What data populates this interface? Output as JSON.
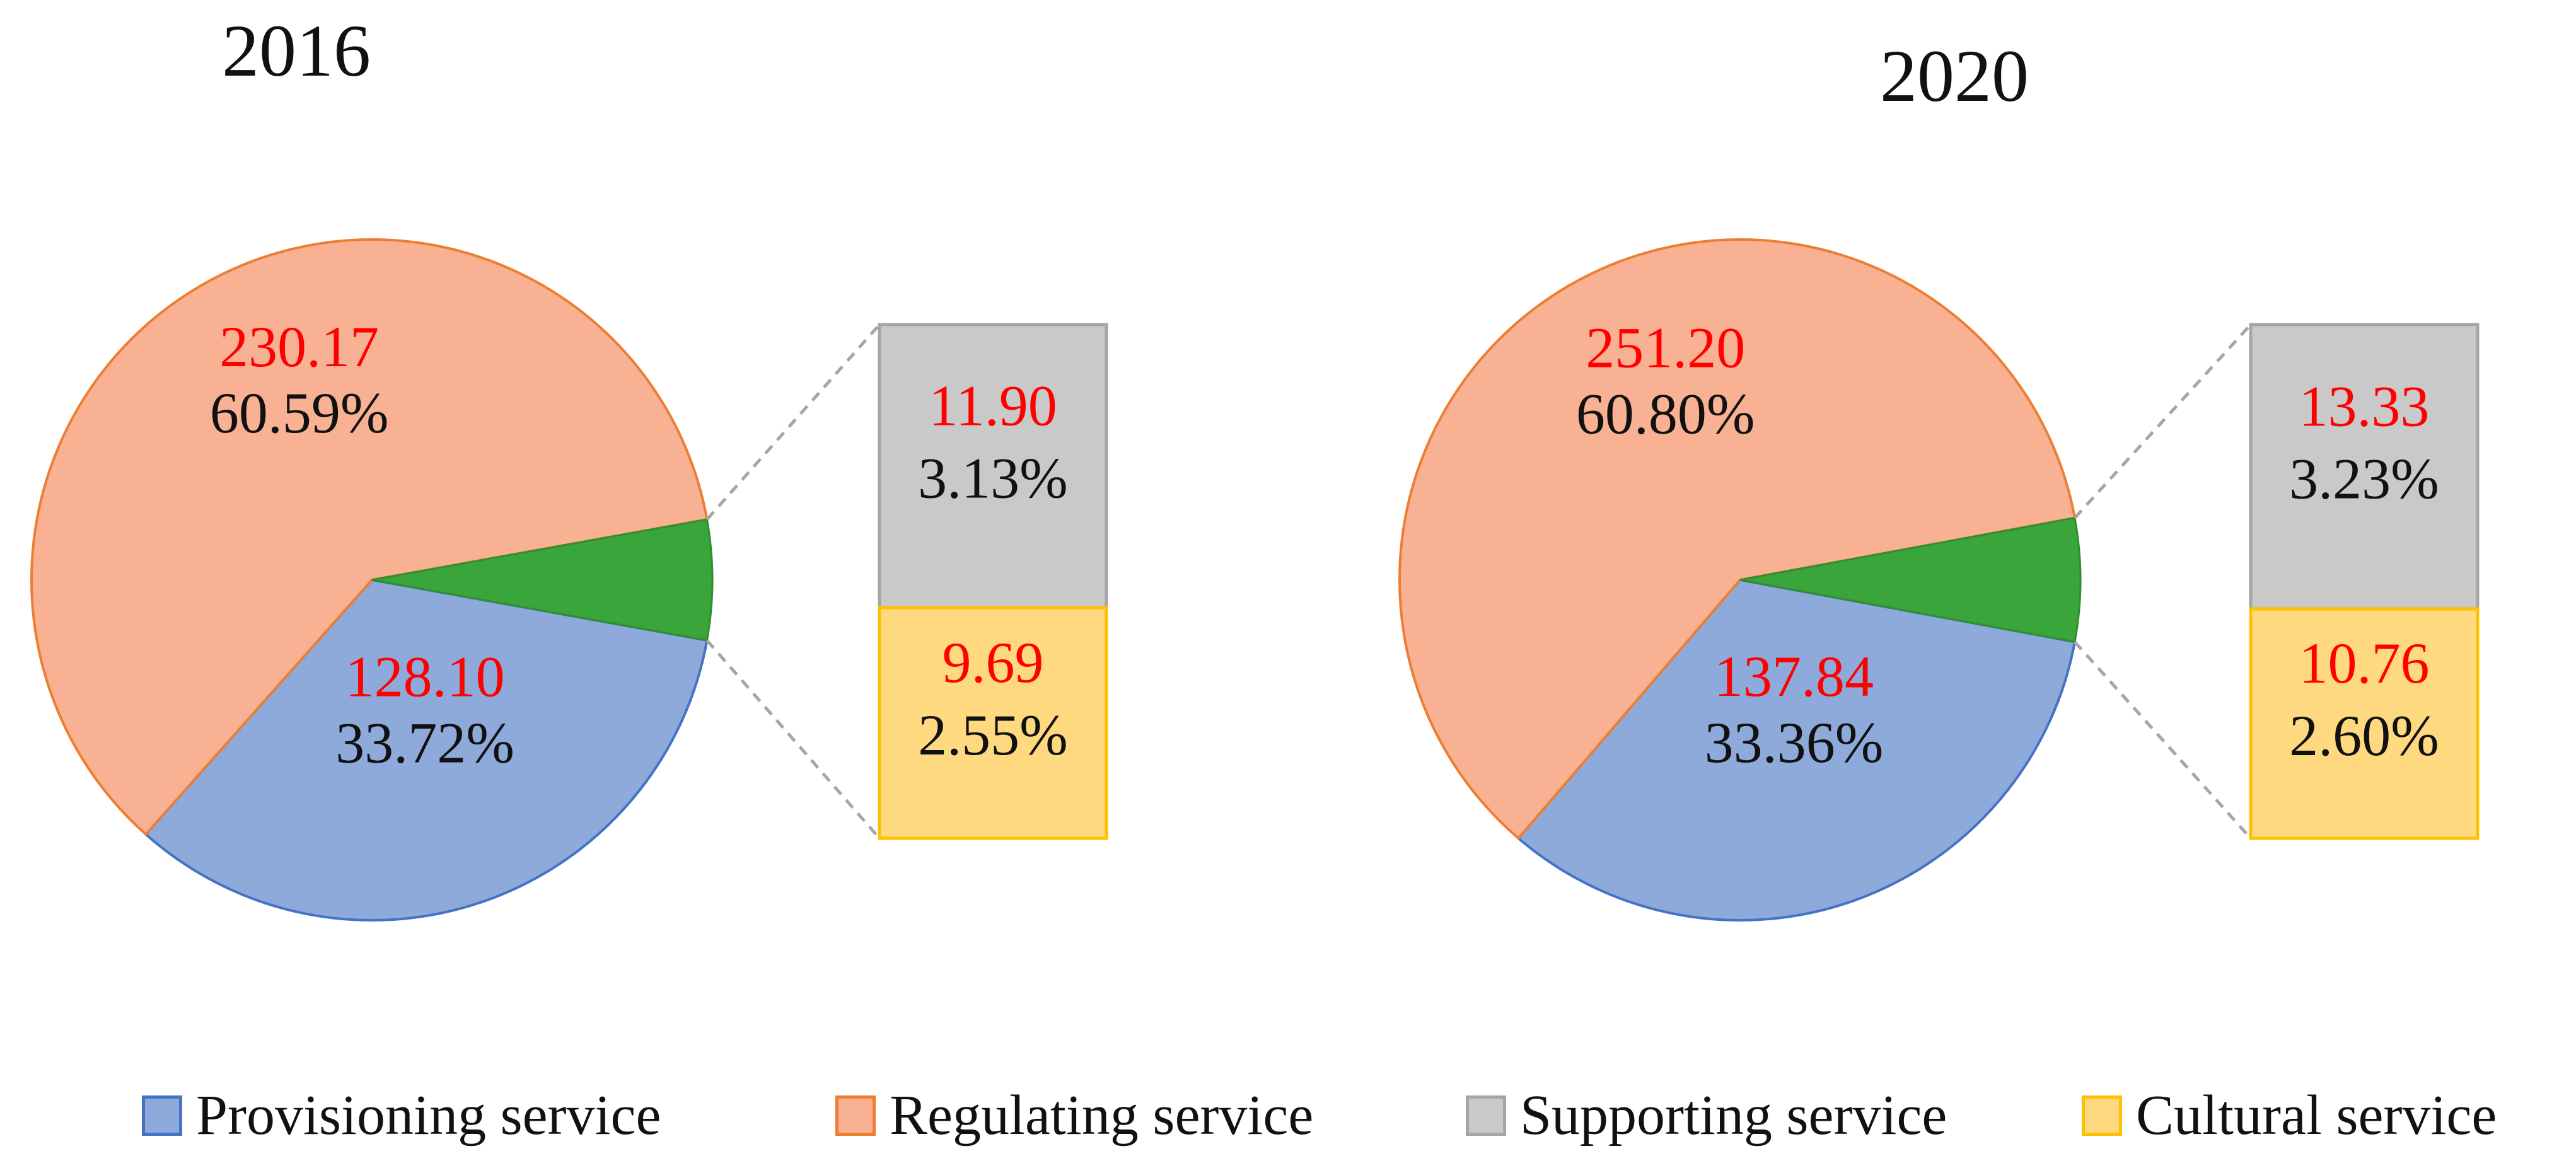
{
  "chart_data": [
    {
      "type": "pie",
      "title": "2016",
      "slices": [
        {
          "category": "Provisioning service",
          "value": 128.1,
          "percent": "33.72%",
          "value_label": "128.10"
        },
        {
          "category": "Regulating service",
          "value": 230.17,
          "percent": "60.59%",
          "value_label": "230.17"
        },
        {
          "category": "Supporting service",
          "value": 11.9,
          "percent": "3.13%",
          "value_label": "11.90"
        },
        {
          "category": "Cultural service",
          "value": 9.69,
          "percent": "2.55%",
          "value_label": "9.69"
        }
      ],
      "detail_bar_categories": [
        "Supporting service",
        "Cultural service"
      ]
    },
    {
      "type": "pie",
      "title": "2020",
      "slices": [
        {
          "category": "Provisioning service",
          "value": 137.84,
          "percent": "33.36%",
          "value_label": "137.84"
        },
        {
          "category": "Regulating service",
          "value": 251.2,
          "percent": "60.80%",
          "value_label": "251.20"
        },
        {
          "category": "Supporting service",
          "value": 13.33,
          "percent": "3.23%",
          "value_label": "13.33"
        },
        {
          "category": "Cultural service",
          "value": 10.76,
          "percent": "2.60%",
          "value_label": "10.76"
        }
      ],
      "detail_bar_categories": [
        "Supporting service",
        "Cultural service"
      ]
    }
  ],
  "legend": {
    "placement": "bottom",
    "items": [
      {
        "label": "Provisioning service",
        "color": "#8eaadb",
        "border": "#4472c4"
      },
      {
        "label": "Regulating service",
        "color": "#f8b193",
        "border": "#ed7d31"
      },
      {
        "label": "Supporting service",
        "color": "#c9c9c9",
        "border": "#a5a5a5"
      },
      {
        "label": "Cultural service",
        "color": "#ffd97f",
        "border": "#ffc000"
      }
    ]
  },
  "colors": {
    "provisioning": "#8eaadb",
    "provisioning_border": "#4472c4",
    "regulating": "#f8b193",
    "regulating_border": "#ed7d31",
    "supporting": "#c9c9c9",
    "supporting_border": "#a5a5a5",
    "cultural": "#ffd97f",
    "cultural_border": "#ffc000",
    "other_slice": "#3aa53a",
    "value_label": "#ff0000",
    "percent_label": "#111111",
    "connector": "#a6a6a6"
  }
}
